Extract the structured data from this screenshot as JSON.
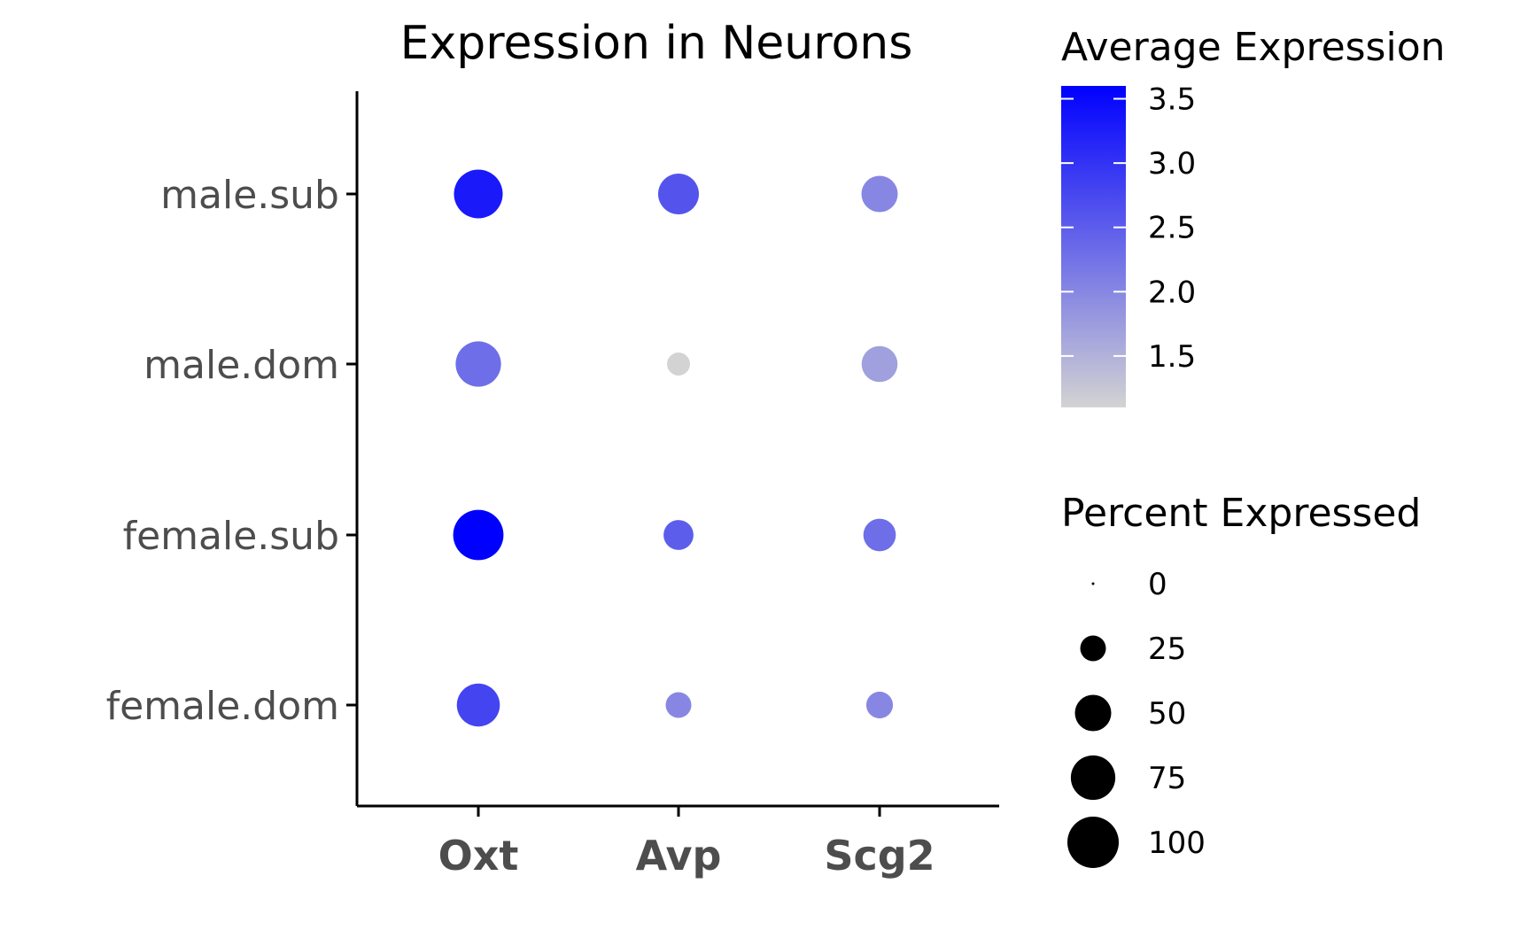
{
  "chart_data": {
    "type": "dot",
    "title": "Expression in Neurons",
    "xlabel": "",
    "ylabel": "",
    "categories_x": [
      "Oxt",
      "Avp",
      "Scg2"
    ],
    "categories_y": [
      "male.sub",
      "male.dom",
      "female.sub",
      "female.dom"
    ],
    "points": [
      {
        "x": "Oxt",
        "y": "male.sub",
        "avg_expression": 3.3,
        "pct_expressed": 90
      },
      {
        "x": "Avp",
        "y": "male.sub",
        "avg_expression": 2.6,
        "pct_expressed": 63
      },
      {
        "x": "Scg2",
        "y": "male.sub",
        "avg_expression": 2.0,
        "pct_expressed": 50
      },
      {
        "x": "Oxt",
        "y": "male.dom",
        "avg_expression": 2.3,
        "pct_expressed": 78
      },
      {
        "x": "Avp",
        "y": "male.dom",
        "avg_expression": 1.1,
        "pct_expressed": 20
      },
      {
        "x": "Scg2",
        "y": "male.dom",
        "avg_expression": 1.7,
        "pct_expressed": 49
      },
      {
        "x": "Oxt",
        "y": "female.sub",
        "avg_expression": 3.6,
        "pct_expressed": 96
      },
      {
        "x": "Avp",
        "y": "female.sub",
        "avg_expression": 2.5,
        "pct_expressed": 34
      },
      {
        "x": "Scg2",
        "y": "female.sub",
        "avg_expression": 2.3,
        "pct_expressed": 40
      },
      {
        "x": "Oxt",
        "y": "female.dom",
        "avg_expression": 2.8,
        "pct_expressed": 70
      },
      {
        "x": "Avp",
        "y": "female.dom",
        "avg_expression": 2.0,
        "pct_expressed": 25
      },
      {
        "x": "Scg2",
        "y": "female.dom",
        "avg_expression": 2.0,
        "pct_expressed": 27
      }
    ],
    "color_scale": {
      "title": "Average Expression",
      "low_color": "#d3d3d3",
      "high_color": "#0000ff",
      "range": [
        1.1,
        3.6
      ],
      "ticks": [
        1.5,
        2.0,
        2.5,
        3.0,
        3.5
      ],
      "tick_labels": [
        "1.5",
        "2.0",
        "2.5",
        "3.0",
        "3.5"
      ]
    },
    "size_scale": {
      "title": "Percent Expressed",
      "range": [
        0,
        100
      ],
      "ticks": [
        0,
        25,
        50,
        75,
        100
      ],
      "tick_labels": [
        "0",
        "25",
        "50",
        "75",
        "100"
      ]
    },
    "grid": false,
    "legend_position": "right"
  }
}
